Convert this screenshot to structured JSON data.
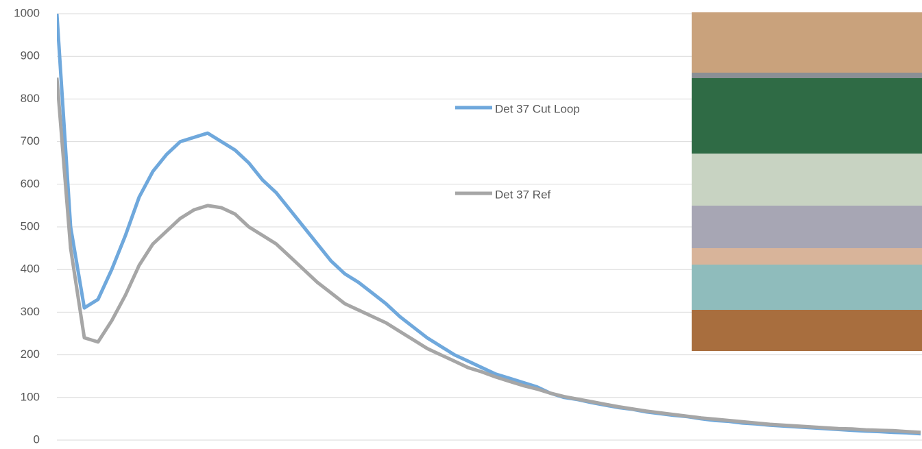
{
  "chart_data": {
    "type": "line",
    "categories": [
      null,
      null,
      null,
      null,
      null,
      null,
      null,
      null,
      null,
      null,
      null,
      null,
      null,
      null,
      null,
      null,
      null,
      null,
      null,
      null,
      null,
      null,
      null,
      null,
      null,
      null,
      null,
      null,
      null,
      null,
      null,
      null,
      null,
      null,
      null,
      null,
      null,
      null,
      null,
      null,
      null,
      null,
      null,
      null,
      null,
      null,
      null,
      null,
      null,
      null,
      null,
      null,
      null,
      null,
      null,
      null,
      null,
      null,
      null,
      null,
      null,
      null,
      null,
      null
    ],
    "series": [
      {
        "name": "Det 37 Cut Loop",
        "color": "#6fa8dc",
        "values": [
          1000,
          500,
          310,
          330,
          400,
          480,
          570,
          630,
          670,
          700,
          710,
          720,
          700,
          680,
          650,
          610,
          580,
          540,
          500,
          460,
          420,
          390,
          370,
          345,
          320,
          290,
          265,
          240,
          220,
          200,
          185,
          170,
          155,
          145,
          135,
          125,
          110,
          100,
          95,
          88,
          82,
          76,
          72,
          66,
          62,
          58,
          55,
          50,
          46,
          44,
          40,
          38,
          35,
          33,
          31,
          29,
          27,
          25,
          23,
          21,
          20,
          18,
          17,
          15
        ]
      },
      {
        "name": "Det 37 Ref",
        "color": "#a6a6a6",
        "values": [
          850,
          450,
          240,
          230,
          280,
          340,
          410,
          460,
          490,
          520,
          540,
          550,
          545,
          530,
          500,
          480,
          460,
          430,
          400,
          370,
          345,
          320,
          305,
          290,
          275,
          255,
          235,
          215,
          200,
          185,
          170,
          160,
          148,
          138,
          128,
          120,
          110,
          102,
          96,
          90,
          84,
          78,
          73,
          68,
          64,
          60,
          56,
          52,
          49,
          46,
          43,
          40,
          37,
          35,
          33,
          31,
          29,
          27,
          26,
          24,
          23,
          22,
          20,
          18
        ]
      }
    ],
    "ylim": [
      0,
      1000
    ],
    "yticks": [
      0,
      100,
      200,
      300,
      400,
      500,
      600,
      700,
      800,
      900,
      1000
    ],
    "grid": true
  }
}
